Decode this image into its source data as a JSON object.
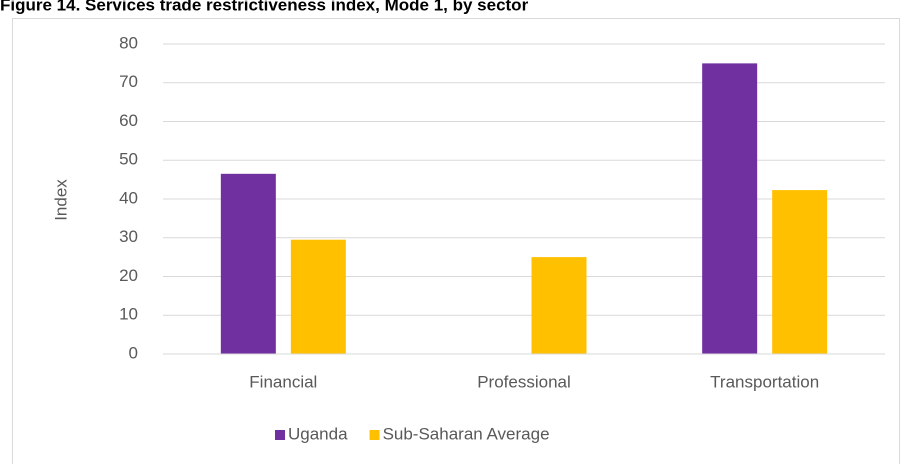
{
  "chart_data": {
    "type": "bar",
    "title": "Figure 14. Services trade restrictiveness index, Mode 1, by sector",
    "y_label": "Index",
    "categories": [
      "Financial",
      "Professional",
      "Transportation"
    ],
    "series": [
      {
        "name": "Uganda",
        "color": "#7030a0",
        "values": [
          46.5,
          null,
          75
        ]
      },
      {
        "name": "Sub-Saharan Average",
        "color": "#ffc000",
        "values": [
          29.5,
          25,
          42.3
        ]
      }
    ],
    "ylim": [
      0,
      80
    ],
    "yticks": [
      0,
      10,
      20,
      30,
      40,
      50,
      60,
      70,
      80
    ],
    "grid": true,
    "legend": "bottom"
  }
}
